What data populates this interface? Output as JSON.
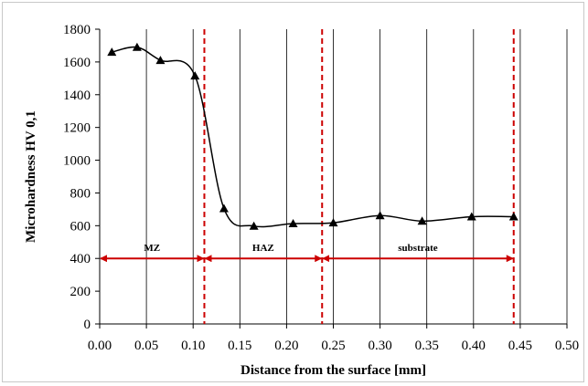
{
  "chart_data": {
    "type": "line",
    "xlabel": "Distance from the surface [mm]",
    "ylabel": "Microhardness HV 0,1",
    "xlim": [
      0,
      0.5
    ],
    "ylim": [
      0,
      1800
    ],
    "x_ticks": [
      "0.00",
      "0.05",
      "0.10",
      "0.15",
      "0.20",
      "0.25",
      "0.30",
      "0.35",
      "0.40",
      "0.45",
      "0.50"
    ],
    "y_ticks": [
      "0",
      "200",
      "400",
      "600",
      "800",
      "1000",
      "1200",
      "1400",
      "1600",
      "1800"
    ],
    "grid": "vertical",
    "series": [
      {
        "marker": "triangle",
        "color": "#000000",
        "points": [
          {
            "x": 0.013,
            "y": 1660
          },
          {
            "x": 0.04,
            "y": 1690
          },
          {
            "x": 0.065,
            "y": 1610
          },
          {
            "x": 0.102,
            "y": 1515
          },
          {
            "x": 0.133,
            "y": 705
          },
          {
            "x": 0.165,
            "y": 598
          },
          {
            "x": 0.207,
            "y": 613
          },
          {
            "x": 0.25,
            "y": 618
          },
          {
            "x": 0.3,
            "y": 662
          },
          {
            "x": 0.345,
            "y": 628
          },
          {
            "x": 0.398,
            "y": 655
          },
          {
            "x": 0.443,
            "y": 655
          }
        ]
      }
    ],
    "boundaries": {
      "color": "#cc0000",
      "x": [
        0.112,
        0.238,
        0.443
      ]
    },
    "regions": [
      {
        "label": "MZ",
        "x_start": 0.0,
        "x_end": 0.112,
        "y": 400
      },
      {
        "label": "HAZ",
        "x_start": 0.112,
        "x_end": 0.238,
        "y": 400
      },
      {
        "label": "substrate",
        "x_start": 0.238,
        "x_end": 0.443,
        "y": 400
      }
    ]
  }
}
